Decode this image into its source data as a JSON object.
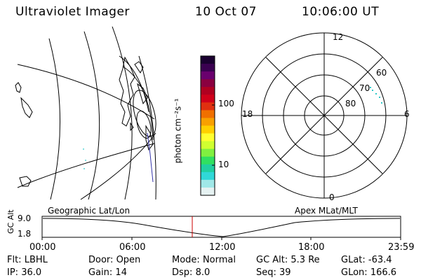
{
  "header": {
    "instrument": "Ultraviolet Imager",
    "date": "10 Oct 07",
    "time": "10:06:00 UT"
  },
  "colorbar": {
    "label": "photon cm⁻²s⁻¹",
    "ticks": [
      "100",
      "10"
    ],
    "colors": [
      "#1a0030",
      "#3a0050",
      "#6a006e",
      "#8a0040",
      "#b00020",
      "#d0001a",
      "#e03010",
      "#f07000",
      "#f8a000",
      "#ffd000",
      "#ffff30",
      "#d0ff30",
      "#80f040",
      "#30e060",
      "#20d0a0",
      "#30d8d8",
      "#a0e8e8",
      "#e6f2f2"
    ]
  },
  "panels": {
    "left_label": "Geographic Lat/Lon",
    "right_label": "Apex MLat/MLT"
  },
  "polar": {
    "lat_labels": [
      "60",
      "70",
      "80"
    ],
    "mlt_labels": {
      "top": "12",
      "bottom": "0",
      "left": "18",
      "right": "6"
    }
  },
  "altitude": {
    "axis_title": "GC Alt",
    "ticks": [
      "9.0",
      "1.8"
    ],
    "time_labels": [
      "00:00",
      "06:00",
      "12:00",
      "18:00",
      "23:59"
    ],
    "marker_color": "#cc0000"
  },
  "status": {
    "row1": [
      {
        "label": "Flt:",
        "value": "LBHL"
      },
      {
        "label": "Door:",
        "value": "Open"
      },
      {
        "label": "Mode:",
        "value": "Normal"
      },
      {
        "label": "GC Alt:",
        "value": "5.3 Re"
      },
      {
        "label": "GLat:",
        "value": "-63.4"
      }
    ],
    "row2": [
      {
        "label": "IP:",
        "value": "36.0"
      },
      {
        "label": "Gain:",
        "value": "14"
      },
      {
        "label": "Dsp:",
        "value": "8.0"
      },
      {
        "label": "Seq:",
        "value": "39"
      },
      {
        "label": "GLon:",
        "value": "166.6"
      }
    ]
  }
}
